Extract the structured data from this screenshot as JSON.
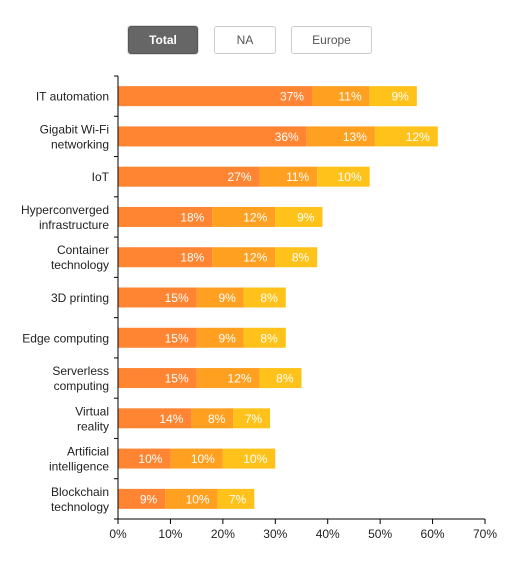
{
  "tabs": [
    {
      "label": "Total",
      "active": true
    },
    {
      "label": "NA",
      "active": false
    },
    {
      "label": "Europe",
      "active": false
    }
  ],
  "colors": {
    "series1": "#ff8533",
    "series2": "#ffa020",
    "series3": "#ffc21a",
    "label_text": "#ffffff",
    "axis": "#000000",
    "text": "#222222"
  },
  "chart_data": {
    "type": "bar",
    "orientation": "horizontal",
    "stacked": true,
    "categories": [
      "IT automation",
      "Gigabit Wi-Fi networking",
      "IoT",
      "Hyperconverged infrastructure",
      "Container technology",
      "3D printing",
      "Edge computing",
      "Serverless computing",
      "Virtual reality",
      "Artificial intelligence",
      "Blockchain technology"
    ],
    "category_lines": [
      [
        "IT automation"
      ],
      [
        "Gigabit Wi-Fi",
        "networking"
      ],
      [
        "IoT"
      ],
      [
        "Hyperconverged",
        "infrastructure"
      ],
      [
        "Container",
        "technology"
      ],
      [
        "3D printing"
      ],
      [
        "Edge computing"
      ],
      [
        "Serverless",
        "computing"
      ],
      [
        "Virtual",
        "reality"
      ],
      [
        "Artificial",
        "intelligence"
      ],
      [
        "Blockchain",
        "technology"
      ]
    ],
    "series": [
      {
        "values": [
          37,
          36,
          27,
          18,
          18,
          15,
          15,
          15,
          14,
          10,
          9
        ]
      },
      {
        "values": [
          11,
          13,
          11,
          12,
          12,
          9,
          9,
          12,
          8,
          10,
          10
        ]
      },
      {
        "values": [
          9,
          12,
          10,
          9,
          8,
          8,
          8,
          8,
          7,
          10,
          7
        ]
      }
    ],
    "value_suffix": "%",
    "xlim": [
      0,
      70
    ],
    "xticks": [
      0,
      10,
      20,
      30,
      40,
      50,
      60,
      70
    ],
    "xtick_labels": [
      "0%",
      "10%",
      "20%",
      "30%",
      "40%",
      "50%",
      "60%",
      "70%"
    ],
    "grid": false,
    "legend": "none"
  }
}
